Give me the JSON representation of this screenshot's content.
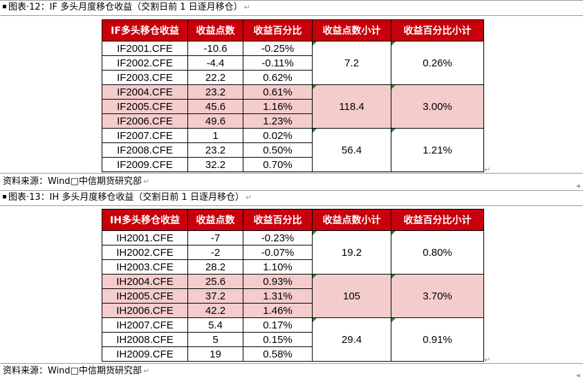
{
  "sections": [
    {
      "caption": "图表·12：IF 多头月度移仓收益（交割日前 1 日逐月移仓）",
      "headers": [
        "IF多头移仓收益",
        "收益点数",
        "收益百分比",
        "收益点数小计",
        "收益百分比小计"
      ],
      "rows": [
        {
          "code": "IF2001.CFE",
          "points": "-10.6",
          "pct": "-0.25%"
        },
        {
          "code": "IF2002.CFE",
          "points": "-4.4",
          "pct": "-0.11%"
        },
        {
          "code": "IF2003.CFE",
          "points": "22.2",
          "pct": "0.62%"
        },
        {
          "code": "IF2004.CFE",
          "points": "23.2",
          "pct": "0.61%"
        },
        {
          "code": "IF2005.CFE",
          "points": "45.6",
          "pct": "1.16%"
        },
        {
          "code": "IF2006.CFE",
          "points": "49.6",
          "pct": "1.23%"
        },
        {
          "code": "IF2007.CFE",
          "points": "1",
          "pct": "0.02%"
        },
        {
          "code": "IF2008.CFE",
          "points": "23.2",
          "pct": "0.50%"
        },
        {
          "code": "IF2009.CFE",
          "points": "32.2",
          "pct": "0.70%"
        }
      ],
      "subtotals": [
        {
          "points": "7.2",
          "pct": "0.26%"
        },
        {
          "points": "118.4",
          "pct": "3.00%"
        },
        {
          "points": "56.4",
          "pct": "1.21%"
        }
      ],
      "source": "资料来源：Wind□中信期货研究部"
    },
    {
      "caption": "图表·13：IH 多头月度移仓收益（交割日前 1 日逐月移仓）",
      "headers": [
        "IH多头移仓收益",
        "收益点数",
        "收益百分比",
        "收益点数小计",
        "收益百分比小计"
      ],
      "rows": [
        {
          "code": "IH2001.CFE",
          "points": "-7",
          "pct": "-0.23%"
        },
        {
          "code": "IH2002.CFE",
          "points": "-2",
          "pct": "-0.07%"
        },
        {
          "code": "IH2003.CFE",
          "points": "28.2",
          "pct": "1.10%"
        },
        {
          "code": "IH2004.CFE",
          "points": "25.6",
          "pct": "0.93%"
        },
        {
          "code": "IH2005.CFE",
          "points": "37.2",
          "pct": "1.31%"
        },
        {
          "code": "IH2006.CFE",
          "points": "42.2",
          "pct": "1.46%"
        },
        {
          "code": "IH2007.CFE",
          "points": "5.4",
          "pct": "0.17%"
        },
        {
          "code": "IH2008.CFE",
          "points": "5",
          "pct": "0.15%"
        },
        {
          "code": "IH2009.CFE",
          "points": "19",
          "pct": "0.58%"
        }
      ],
      "subtotals": [
        {
          "points": "19.2",
          "pct": "0.80%"
        },
        {
          "points": "105",
          "pct": "3.70%"
        },
        {
          "points": "29.4",
          "pct": "0.91%"
        }
      ],
      "source": "资料来源：Wind□中信期货研究部"
    }
  ],
  "paragraph_mark": "↵",
  "colors": {
    "header_bg": "#c7000b",
    "header_text": "#ffffff",
    "highlight_bg": "#f4cccc",
    "comment_marker": "#1f8a2a"
  }
}
